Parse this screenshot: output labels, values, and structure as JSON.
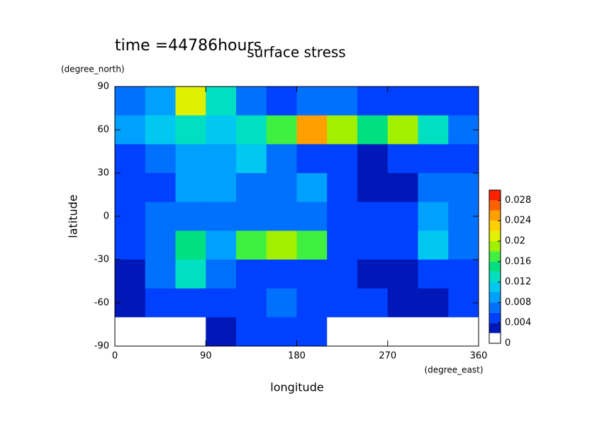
{
  "chart_data": {
    "type": "contour",
    "title": "surface stress",
    "subtitle": "time =44786hours",
    "x_label": "longitude",
    "x_unit": "(degree_east)",
    "y_label": "latitude",
    "y_unit": "(degree_north)",
    "xlim": [
      0,
      360
    ],
    "ylim": [
      -90,
      90
    ],
    "xticks": [
      0,
      90,
      180,
      270,
      360
    ],
    "yticks": [
      -90,
      -60,
      -30,
      0,
      30,
      60,
      90
    ],
    "x": [
      15,
      45,
      75,
      105,
      135,
      165,
      195,
      225,
      255,
      285,
      315,
      345
    ],
    "y": [
      80,
      60,
      40,
      20,
      0,
      -20,
      -40,
      -60,
      -80
    ],
    "z": [
      [
        0.006,
        0.008,
        0.02,
        0.012,
        0.006,
        0.004,
        0.006,
        0.006,
        0.004,
        0.004,
        0.004,
        0.004
      ],
      [
        0.008,
        0.01,
        0.012,
        0.01,
        0.012,
        0.016,
        0.024,
        0.018,
        0.014,
        0.018,
        0.012,
        0.006
      ],
      [
        0.004,
        0.006,
        0.008,
        0.008,
        0.01,
        0.006,
        0.004,
        0.004,
        0.002,
        0.004,
        0.004,
        0.004
      ],
      [
        0.004,
        0.004,
        0.008,
        0.008,
        0.006,
        0.006,
        0.008,
        0.004,
        0.002,
        0.002,
        0.006,
        0.006
      ],
      [
        0.004,
        0.006,
        0.006,
        0.006,
        0.006,
        0.006,
        0.006,
        0.004,
        0.004,
        0.004,
        0.008,
        0.006
      ],
      [
        0.004,
        0.006,
        0.014,
        0.008,
        0.016,
        0.018,
        0.016,
        0.004,
        0.004,
        0.004,
        0.01,
        0.006
      ],
      [
        0.002,
        0.006,
        0.012,
        0.006,
        0.004,
        0.004,
        0.004,
        0.004,
        0.002,
        0.002,
        0.004,
        0.004
      ],
      [
        0.002,
        0.004,
        0.004,
        0.004,
        0.004,
        0.006,
        0.004,
        0.004,
        0.004,
        0.002,
        0.002,
        0.004
      ],
      [
        0,
        0,
        0,
        0.002,
        0.004,
        0.004,
        0.004,
        0,
        0,
        0,
        0,
        0
      ]
    ],
    "colorbar": {
      "levels": [
        0,
        0.002,
        0.004,
        0.006,
        0.008,
        0.01,
        0.012,
        0.014,
        0.016,
        0.018,
        0.02,
        0.022,
        0.024,
        0.026,
        0.028,
        0.03
      ],
      "colors": [
        "#ffffff",
        "#0018b8",
        "#0040ff",
        "#0070ff",
        "#00a0ff",
        "#00c8f0",
        "#00e0c0",
        "#00e080",
        "#40f040",
        "#a0f000",
        "#e0f000",
        "#ffd000",
        "#ffa000",
        "#ff6000",
        "#ff2000"
      ],
      "ticks": [
        0,
        0.004,
        0.008,
        0.012,
        0.016,
        0.02,
        0.024,
        0.028
      ]
    }
  }
}
